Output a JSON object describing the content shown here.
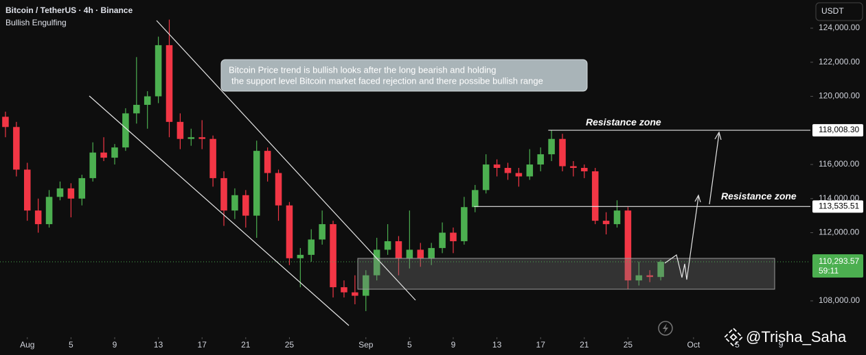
{
  "chart_data": {
    "type": "candlestick",
    "title": "Bitcoin / TetherUS · 4h · Binance",
    "subtitle": "Bullish Engulfing",
    "currency": "USDT",
    "annotation": [
      "Bitcoin Price trend is bullish looks after the long bearish and holding",
      "the support level Bitcoin market faced rejection and there possibe bullish range"
    ],
    "x": [
      -1,
      0,
      1,
      2,
      3,
      4,
      5,
      6,
      7,
      8,
      9,
      10,
      11,
      12,
      13,
      14,
      15,
      16,
      17,
      18,
      19,
      20,
      21,
      22,
      23,
      24,
      25,
      26,
      27,
      28,
      29,
      30,
      31,
      32,
      33,
      34,
      35,
      36,
      37,
      38,
      39,
      40,
      41,
      42,
      43,
      44,
      45,
      46,
      47,
      48,
      49,
      50,
      51,
      52,
      53,
      54,
      55,
      56,
      57,
      58,
      59
    ],
    "open": [
      118800,
      118200,
      115700,
      113300,
      112500,
      114100,
      114600,
      114000,
      115200,
      116700,
      116400,
      117000,
      119000,
      119500,
      120000,
      123000,
      118500,
      117500,
      117600,
      117500,
      115200,
      113300,
      114200,
      113000,
      116800,
      115500,
      113600,
      110500,
      110700,
      111600,
      112500,
      108800,
      108500,
      108300,
      109500,
      111000,
      111500,
      110500,
      111000,
      110500,
      111100,
      112000,
      111500,
      113500,
      114500,
      116000,
      115800,
      115500,
      115300,
      116000,
      116600,
      117500,
      115900,
      115800,
      115600,
      112700,
      112500,
      113300,
      109200,
      109500,
      109400
    ],
    "high": [
      119100,
      118500,
      116100,
      114000,
      114500,
      115000,
      114900,
      115400,
      117300,
      117600,
      117200,
      119300,
      122300,
      120300,
      123500,
      124500,
      119000,
      118100,
      118600,
      117700,
      115600,
      114600,
      114500,
      117400,
      117000,
      115700,
      113800,
      111100,
      112200,
      113300,
      112700,
      109200,
      109500,
      109800,
      111700,
      112500,
      111800,
      113300,
      111400,
      111400,
      112600,
      112300,
      114100,
      114800,
      116600,
      116300,
      116100,
      115800,
      116900,
      117000,
      118000,
      117800,
      116200,
      116000,
      115800,
      113200,
      113900,
      113500,
      110300,
      109800,
      110400
    ],
    "low": [
      117600,
      115300,
      112700,
      112000,
      112300,
      113900,
      112900,
      113600,
      115000,
      116200,
      116000,
      116800,
      118400,
      118100,
      119600,
      117600,
      116900,
      117100,
      116900,
      114700,
      112400,
      112800,
      112300,
      111700,
      115000,
      112700,
      110100,
      108800,
      110300,
      111300,
      108200,
      108200,
      107800,
      107400,
      109200,
      110700,
      109500,
      109900,
      110000,
      110100,
      110800,
      110800,
      111300,
      113200,
      114300,
      115300,
      115100,
      114700,
      115100,
      115600,
      116200,
      115600,
      115300,
      115200,
      112500,
      111900,
      112300,
      108700,
      108900,
      109100,
      109200
    ],
    "close": [
      118200,
      115700,
      113300,
      112500,
      114100,
      114600,
      114000,
      115200,
      116700,
      116400,
      117000,
      119000,
      119500,
      120000,
      123000,
      118500,
      117500,
      117600,
      117500,
      115200,
      113300,
      114200,
      113000,
      116800,
      115500,
      113600,
      110500,
      110700,
      111600,
      112500,
      108800,
      108500,
      108300,
      109500,
      111000,
      111500,
      110500,
      111000,
      110500,
      111100,
      112000,
      111500,
      113500,
      114500,
      116000,
      115800,
      115500,
      115300,
      116000,
      116600,
      117500,
      115900,
      115800,
      115600,
      112700,
      112500,
      113300,
      109200,
      109500,
      109400,
      110290
    ],
    "up_color": "#4caf50",
    "down_color": "#f23645",
    "xlim": [
      -1.5,
      72.7
    ],
    "xticks": [
      {
        "value": 1,
        "label": "Aug"
      },
      5,
      9,
      13,
      17,
      21,
      25,
      {
        "value": 32,
        "label": "Sep"
      },
      {
        "value": 36,
        "label": "5"
      },
      {
        "value": 40,
        "label": "9"
      },
      {
        "value": 44,
        "label": "13"
      },
      {
        "value": 48,
        "label": "17"
      },
      {
        "value": 52,
        "label": "21"
      },
      {
        "value": 56,
        "label": "25"
      },
      {
        "value": 62,
        "label": "Oct"
      },
      {
        "value": 66,
        "label": "5"
      },
      {
        "value": 70,
        "label": "9"
      }
    ],
    "ylim": [
      105950,
      125650
    ],
    "yticks": [
      {
        "value": 124000,
        "label": "124,000.00"
      },
      {
        "value": 122000,
        "label": "122,000.00"
      },
      {
        "value": 120000,
        "label": "120,000.00"
      },
      {
        "value": 116000,
        "label": "116,000.00"
      },
      {
        "value": 114000,
        "label": "114,000.00"
      },
      {
        "value": 112000,
        "label": "112,000.00"
      },
      {
        "value": 108000,
        "label": "108,000.00"
      }
    ],
    "levels": [
      {
        "name": "Resistance zone",
        "value": 118008.3,
        "label": "118,008.30",
        "from": 48.7
      },
      {
        "name": "Resistance zone",
        "value": 113535.51,
        "label": "113,535.51",
        "from": 41.9
      }
    ],
    "last_price": {
      "value": 110293.57,
      "label": "110,293.57"
    },
    "countdown": "59:11"
  },
  "watermark": "@Trisha_Saha"
}
